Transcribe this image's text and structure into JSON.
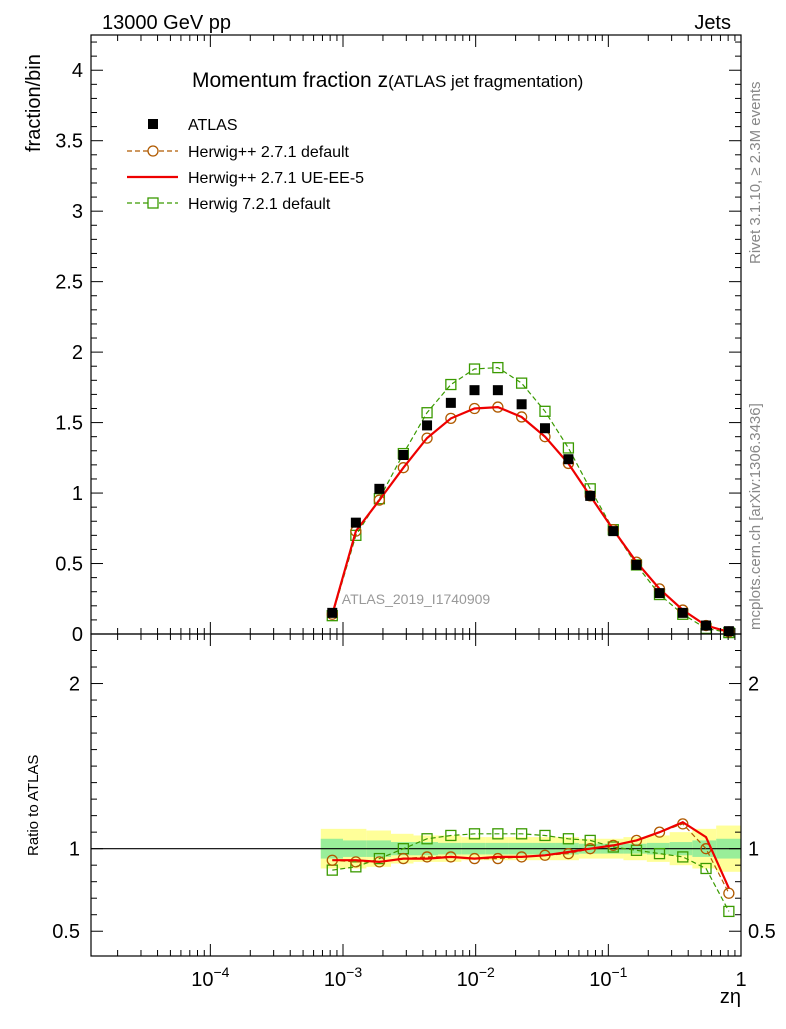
{
  "header": {
    "left": "13000 GeV pp",
    "right": "Jets"
  },
  "side_labels": {
    "rivet": "Rivet 3.1.10, ≥ 2.3M events",
    "mcplots": "mcplots.cern.ch [arXiv:1306.3436]"
  },
  "chart_data": {
    "type": "line",
    "title_main": "Momentum fraction z",
    "title_sub": "(ATLAS jet fragmentation)",
    "watermark": "ATLAS_2019_I1740909",
    "xlabel": "zη",
    "ylabel": "fraction/bin",
    "ratio_ylabel": "Ratio to ATLAS",
    "xscale": "log",
    "xlim": [
      1.26e-05,
      1.0
    ],
    "ylim": [
      0,
      4.25
    ],
    "ratio_ylim": [
      0.35,
      2.3
    ],
    "x_ticks": [
      {
        "value": 0.0001,
        "base": "10",
        "exp": "−4"
      },
      {
        "value": 0.001,
        "base": "10",
        "exp": "−3"
      },
      {
        "value": 0.01,
        "base": "10",
        "exp": "−2"
      },
      {
        "value": 0.1,
        "base": "10",
        "exp": "−1"
      },
      {
        "value": 1,
        "base": "1",
        "exp": ""
      }
    ],
    "y_ticks": [
      {
        "value": 0,
        "label": "0"
      },
      {
        "value": 0.5,
        "label": "0.5"
      },
      {
        "value": 1,
        "label": "1"
      },
      {
        "value": 1.5,
        "label": "1.5"
      },
      {
        "value": 2,
        "label": "2"
      },
      {
        "value": 2.5,
        "label": "2.5"
      },
      {
        "value": 3,
        "label": "3"
      },
      {
        "value": 3.5,
        "label": "3.5"
      },
      {
        "value": 4,
        "label": "4"
      }
    ],
    "ratio_ticks": [
      {
        "value": 0.5,
        "label": "0.5"
      },
      {
        "value": 1,
        "label": "1"
      },
      {
        "value": 2,
        "label": "2"
      }
    ],
    "x": [
      0.00083,
      0.00125,
      0.00188,
      0.00285,
      0.0043,
      0.0065,
      0.0098,
      0.0147,
      0.0222,
      0.0333,
      0.05,
      0.073,
      0.109,
      0.163,
      0.243,
      0.364,
      0.545,
      0.81
    ],
    "band_edges": [
      0.00068,
      0.001,
      0.0015,
      0.0023,
      0.0034,
      0.0052,
      0.0078,
      0.0118,
      0.0177,
      0.0266,
      0.04,
      0.06,
      0.088,
      0.13,
      0.195,
      0.29,
      0.43,
      0.65,
      1.0
    ],
    "band_total": [
      0.12,
      0.12,
      0.11,
      0.09,
      0.08,
      0.08,
      0.07,
      0.07,
      0.07,
      0.07,
      0.07,
      0.06,
      0.06,
      0.07,
      0.08,
      0.1,
      0.12,
      0.14
    ],
    "band_stat": [
      0.06,
      0.05,
      0.05,
      0.04,
      0.04,
      0.035,
      0.035,
      0.035,
      0.035,
      0.035,
      0.035,
      0.03,
      0.03,
      0.03,
      0.035,
      0.04,
      0.05,
      0.06
    ],
    "legend": [
      {
        "label": "ATLAS",
        "color": "#000000",
        "marker": "filled-square",
        "line": "none"
      },
      {
        "label": "Herwig++ 2.7.1 default",
        "color": "#b05a00",
        "marker": "open-circle",
        "line": "dashed"
      },
      {
        "label": "Herwig++ 2.7.1 UE-EE-5",
        "color": "#ee0000",
        "marker": "none",
        "line": "solid"
      },
      {
        "label": "Herwig 7.2.1 default",
        "color": "#3a9a00",
        "marker": "open-square",
        "line": "dashed"
      }
    ],
    "series": [
      {
        "name": "ATLAS",
        "values": [
          0.15,
          0.79,
          1.03,
          1.27,
          1.48,
          1.64,
          1.73,
          1.73,
          1.63,
          1.46,
          1.24,
          0.98,
          0.73,
          0.49,
          0.29,
          0.15,
          0.06,
          0.02
        ],
        "ratio": [
          1,
          1,
          1,
          1,
          1,
          1,
          1,
          1,
          1,
          1,
          1,
          1,
          1,
          1,
          1,
          1,
          1,
          1
        ]
      },
      {
        "name": "Herwig++ 2.7.1 default",
        "values": [
          0.14,
          0.73,
          0.95,
          1.18,
          1.39,
          1.53,
          1.6,
          1.61,
          1.54,
          1.4,
          1.21,
          0.98,
          0.74,
          0.51,
          0.32,
          0.17,
          0.06,
          0.015
        ],
        "ratio": [
          0.93,
          0.92,
          0.92,
          0.94,
          0.95,
          0.95,
          0.94,
          0.94,
          0.95,
          0.96,
          0.97,
          1.0,
          1.02,
          1.05,
          1.1,
          1.15,
          1.0,
          0.73
        ]
      },
      {
        "name": "Herwig++ 2.7.1 UE-EE-5",
        "values": [
          0.14,
          0.73,
          0.95,
          1.18,
          1.39,
          1.53,
          1.6,
          1.61,
          1.54,
          1.4,
          1.21,
          0.98,
          0.74,
          0.51,
          0.32,
          0.17,
          0.06,
          0.015
        ],
        "ratio": [
          0.93,
          0.93,
          0.92,
          0.94,
          0.94,
          0.95,
          0.94,
          0.95,
          0.95,
          0.96,
          0.98,
          1.0,
          1.02,
          1.05,
          1.1,
          1.16,
          1.07,
          0.76
        ]
      },
      {
        "name": "Herwig 7.2.1 default",
        "values": [
          0.13,
          0.7,
          0.96,
          1.28,
          1.57,
          1.77,
          1.88,
          1.89,
          1.78,
          1.58,
          1.32,
          1.03,
          0.74,
          0.49,
          0.28,
          0.14,
          0.04,
          0.01
        ],
        "ratio": [
          0.87,
          0.89,
          0.94,
          1.0,
          1.06,
          1.08,
          1.09,
          1.09,
          1.09,
          1.08,
          1.06,
          1.05,
          1.01,
          0.99,
          0.97,
          0.95,
          0.88,
          0.62
        ]
      }
    ]
  }
}
